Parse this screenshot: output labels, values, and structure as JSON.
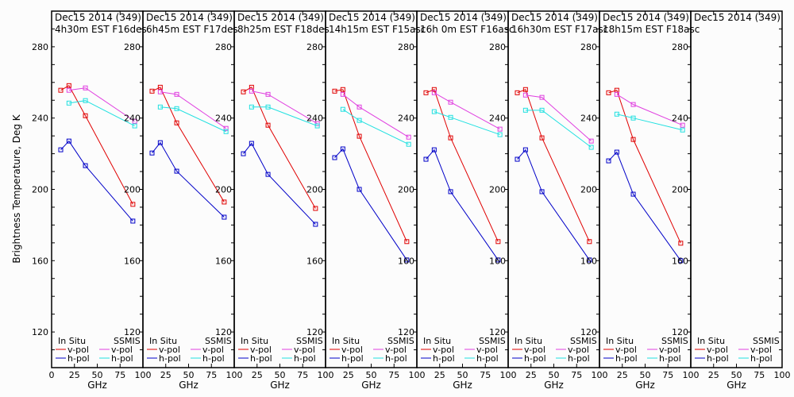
{
  "chart_data": {
    "type": "line",
    "ylabel": "Brightness Temperature, Deg K",
    "xlabel": "GHz",
    "xlim": [
      0,
      100
    ],
    "ylim": [
      100,
      300
    ],
    "xticks": [
      0,
      25,
      50,
      75,
      100
    ],
    "xtick_labels": [
      "0",
      "25",
      "50",
      "75",
      "100"
    ],
    "yticks": [
      120,
      160,
      200,
      240,
      280
    ],
    "ytick_labels": [
      "120",
      "160",
      "200",
      "240",
      "280"
    ],
    "y_minor_step": 10,
    "grid": false,
    "legend": {
      "placement": "bottom",
      "headers": [
        "In Situ",
        "SSMIS"
      ],
      "entries": [
        {
          "group": "In Situ",
          "label": "v-pol",
          "color": "#e00000"
        },
        {
          "group": "In Situ",
          "label": "h-pol",
          "color": "#0000c8"
        },
        {
          "group": "SSMIS",
          "label": "v-pol",
          "color": "#e040e0"
        },
        {
          "group": "SSMIS",
          "label": "h-pol",
          "color": "#20e0e0"
        }
      ]
    },
    "colors": {
      "insitu_v": "#e00000",
      "insitu_h": "#0000c8",
      "ssmis_v": "#e040e0",
      "ssmis_h": "#20e0e0"
    },
    "insitu_freqs": [
      10,
      19,
      37,
      89
    ],
    "ssmis_freqs": [
      19,
      37,
      91
    ],
    "panels": [
      {
        "title_line1": "Dec15 2014 (349)",
        "title_line2": "4h30m EST F16des",
        "insitu_v": [
          255.6,
          258.2,
          241.3,
          191.6
        ],
        "insitu_h": [
          222.2,
          227.1,
          213.3,
          182.2
        ],
        "ssmis_v": [
          255.6,
          256.9,
          238.2
        ],
        "ssmis_h": [
          248.4,
          249.8,
          235.6
        ]
      },
      {
        "title_line1": "Dec15 2014 (349)",
        "title_line2": "6h45m EST F17des",
        "insitu_v": [
          255.1,
          257.3,
          237.3,
          192.9
        ],
        "insitu_h": [
          220.4,
          226.2,
          210.2,
          184.4
        ],
        "ssmis_v": [
          254.7,
          253.3,
          234.2
        ],
        "ssmis_h": [
          246.2,
          245.3,
          232.4
        ]
      },
      {
        "title_line1": "Dec15 2014 (349)",
        "title_line2": "8h25m EST F18des",
        "insitu_v": [
          254.7,
          257.3,
          236.0,
          189.3
        ],
        "insitu_h": [
          220.0,
          225.8,
          208.4,
          180.4
        ],
        "ssmis_v": [
          255.1,
          253.3,
          236.9
        ],
        "ssmis_h": [
          246.2,
          246.2,
          235.6
        ]
      },
      {
        "title_line1": "Dec15 2014 (349)",
        "title_line2": "14h15m EST F15asc",
        "insitu_v": [
          255.1,
          256.0,
          229.8,
          170.7
        ],
        "insitu_h": [
          217.8,
          222.7,
          200.0,
          160.4
        ],
        "ssmis_v": [
          253.3,
          246.2,
          229.3
        ],
        "ssmis_h": [
          244.9,
          238.7,
          225.3
        ]
      },
      {
        "title_line1": "Dec15 2014 (349)",
        "title_line2": "16h 0m EST F16asc",
        "insitu_v": [
          254.2,
          256.0,
          228.9,
          170.7
        ],
        "insitu_h": [
          216.9,
          222.2,
          198.7,
          160.4
        ],
        "ssmis_v": [
          254.2,
          248.9,
          233.8
        ],
        "ssmis_h": [
          243.6,
          240.4,
          230.7
        ]
      },
      {
        "title_line1": "Dec15 2014 (349)",
        "title_line2": "16h30m EST F17asc",
        "insitu_v": [
          254.2,
          256.0,
          228.9,
          170.7
        ],
        "insitu_h": [
          216.9,
          222.2,
          198.7,
          160.4
        ],
        "ssmis_v": [
          252.9,
          251.6,
          227.1
        ],
        "ssmis_h": [
          244.4,
          244.4,
          223.6
        ]
      },
      {
        "title_line1": "Dec15 2014 (349)",
        "title_line2": "18h15m EST F18asc",
        "insitu_v": [
          254.2,
          255.6,
          228.0,
          169.8
        ],
        "insitu_h": [
          216.0,
          220.9,
          197.3,
          160.0
        ],
        "ssmis_v": [
          253.3,
          247.6,
          236.0
        ],
        "ssmis_h": [
          242.2,
          240.0,
          233.3
        ]
      },
      {
        "title_line1": "Dec15 2014 (349)",
        "title_line2": "",
        "insitu_v": [],
        "insitu_h": [],
        "ssmis_v": [],
        "ssmis_h": []
      }
    ]
  }
}
